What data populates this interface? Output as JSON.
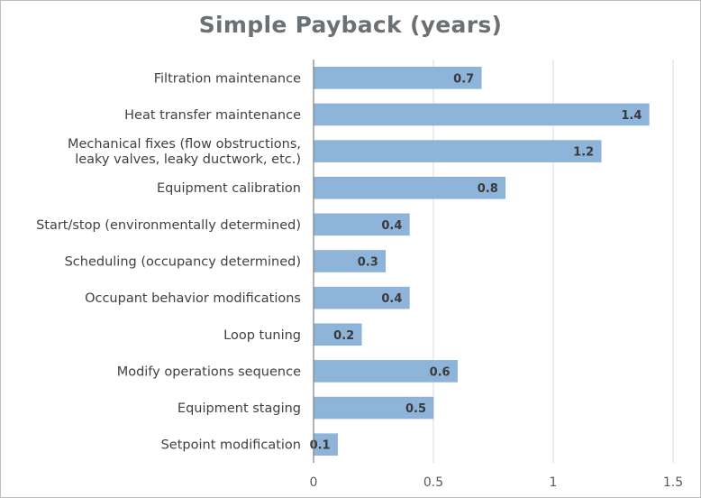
{
  "chart_data": {
    "type": "bar",
    "orientation": "horizontal",
    "title": "Simple Payback (years)",
    "xlabel": "",
    "ylabel": "",
    "categories": [
      "Filtration maintenance",
      "Heat transfer maintenance",
      "Mechanical fixes (flow obstructions, leaky valves, leaky ductwork, etc.)",
      "Equipment calibration",
      "Start/stop (environmentally determined)",
      "Scheduling (occupancy determined)",
      "Occupant behavior modifications",
      "Loop tuning",
      "Modify operations sequence",
      "Equipment staging",
      "Setpoint modification"
    ],
    "values": [
      0.7,
      1.4,
      1.2,
      0.8,
      0.4,
      0.3,
      0.4,
      0.2,
      0.6,
      0.5,
      0.1
    ],
    "data_labels": [
      "0.7",
      "1.4",
      "1.2",
      "0.8",
      "0.4",
      "0.3",
      "0.4",
      "0.2",
      "0.6",
      "0.5",
      "0.1"
    ],
    "xlim": [
      0,
      1.5
    ],
    "xticks": [
      0,
      0.5,
      1,
      1.5
    ],
    "xtick_labels": [
      "0",
      "0.5",
      "1",
      "1.5"
    ],
    "grid": "vertical",
    "legend": "none",
    "colors": {
      "bar": "#8eb4d9",
      "bar_edge": "#7fa7cf",
      "title": "#6b7074",
      "grid": "#d9d9d9",
      "axis": "#808080"
    }
  }
}
